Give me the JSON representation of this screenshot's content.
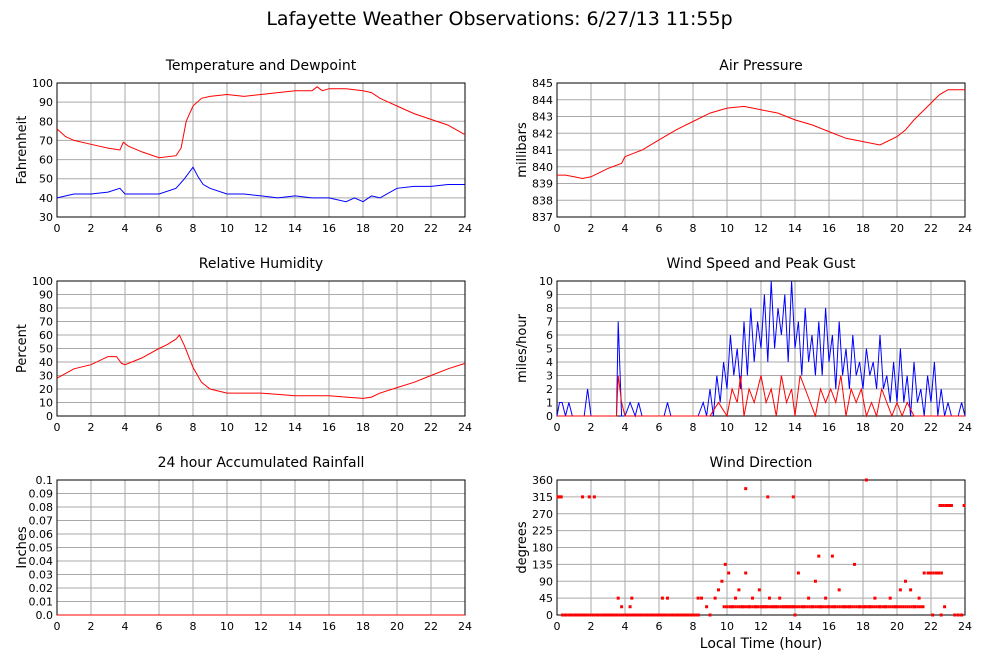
{
  "title": "Lafayette Weather Observations: 6/27/13 11:55p",
  "xlabel": "Local Time (hour)",
  "colors": {
    "red": "#ff0000",
    "blue": "#0000ff",
    "grid": "#aaaaaa"
  },
  "chart_data": [
    {
      "id": "temp",
      "type": "line",
      "title": "Temperature and Dewpoint",
      "ylabel": "Fahrenheit",
      "xlim": [
        0,
        24
      ],
      "ylim": [
        30,
        100
      ],
      "xticks": [
        "0",
        "2",
        "4",
        "6",
        "8",
        "10",
        "12",
        "14",
        "16",
        "18",
        "20",
        "22",
        "24"
      ],
      "yticks": [
        "30",
        "40",
        "50",
        "60",
        "70",
        "80",
        "90",
        "100"
      ],
      "series": [
        {
          "color": "#ff0000",
          "x": [
            0,
            0.5,
            1,
            2,
            3,
            3.7,
            3.9,
            4.2,
            5,
            6,
            7,
            7.3,
            7.6,
            8,
            8.5,
            9,
            10,
            11,
            12,
            13,
            14,
            15,
            15.3,
            15.6,
            16,
            17,
            18,
            18.5,
            19,
            20,
            21,
            22,
            23,
            24
          ],
          "y": [
            76,
            72,
            70,
            68,
            66,
            65,
            69,
            67,
            64,
            61,
            62,
            66,
            80,
            88,
            92,
            93,
            94,
            93,
            94,
            95,
            96,
            96,
            98,
            96,
            97,
            97,
            96,
            95,
            92,
            88,
            84,
            81,
            78,
            73
          ]
        },
        {
          "color": "#0000ff",
          "x": [
            0,
            1,
            2,
            3,
            3.7,
            4,
            5,
            6,
            7,
            7.5,
            8,
            8.3,
            8.6,
            9,
            10,
            11,
            12,
            13,
            14,
            15,
            16,
            17,
            17.5,
            18,
            18.5,
            19,
            20,
            21,
            22,
            23,
            24
          ],
          "y": [
            40,
            42,
            42,
            43,
            45,
            42,
            42,
            42,
            45,
            50,
            56,
            51,
            47,
            45,
            42,
            42,
            41,
            40,
            41,
            40,
            40,
            38,
            40,
            38,
            41,
            40,
            45,
            46,
            46,
            47,
            47
          ]
        }
      ]
    },
    {
      "id": "pressure",
      "type": "line",
      "title": "Air Pressure",
      "ylabel": "millibars",
      "xlim": [
        0,
        24
      ],
      "ylim": [
        837,
        845
      ],
      "xticks": [
        "0",
        "2",
        "4",
        "6",
        "8",
        "10",
        "12",
        "14",
        "16",
        "18",
        "20",
        "22",
        "24"
      ],
      "yticks": [
        "837",
        "838",
        "839",
        "840",
        "841",
        "842",
        "843",
        "844",
        "845"
      ],
      "series": [
        {
          "color": "#ff0000",
          "x": [
            0,
            0.5,
            1,
            1.5,
            2,
            3,
            3.8,
            4,
            5,
            6,
            7,
            8,
            9,
            10,
            11,
            12,
            13,
            14,
            15,
            16,
            17,
            18,
            19,
            20,
            20.5,
            21,
            22,
            22.5,
            23,
            24
          ],
          "y": [
            839.5,
            839.5,
            839.4,
            839.3,
            839.4,
            839.9,
            840.2,
            840.6,
            841.0,
            841.6,
            842.2,
            842.7,
            843.2,
            843.5,
            843.6,
            843.4,
            843.2,
            842.8,
            842.5,
            842.1,
            841.7,
            841.5,
            841.3,
            841.8,
            842.2,
            842.8,
            843.8,
            844.3,
            844.6,
            844.6
          ]
        }
      ]
    },
    {
      "id": "humidity",
      "type": "line",
      "title": "Relative Humidity",
      "ylabel": "Percent",
      "xlim": [
        0,
        24
      ],
      "ylim": [
        0,
        100
      ],
      "xticks": [
        "0",
        "2",
        "4",
        "6",
        "8",
        "10",
        "12",
        "14",
        "16",
        "18",
        "20",
        "22",
        "24"
      ],
      "yticks": [
        "0",
        "10",
        "20",
        "30",
        "40",
        "50",
        "60",
        "70",
        "80",
        "90",
        "100"
      ],
      "series": [
        {
          "color": "#ff0000",
          "x": [
            0,
            1,
            2,
            3,
            3.5,
            3.8,
            4,
            5,
            6,
            6.5,
            7,
            7.2,
            7.5,
            8,
            8.5,
            9,
            10,
            11,
            12,
            13,
            14,
            15,
            16,
            17,
            18,
            18.5,
            19,
            20,
            21,
            22,
            23,
            24
          ],
          "y": [
            28,
            35,
            38,
            44,
            44,
            39,
            38,
            43,
            50,
            53,
            57,
            60,
            52,
            36,
            25,
            20,
            17,
            17,
            17,
            16,
            15,
            15,
            15,
            14,
            13,
            14,
            17,
            21,
            25,
            30,
            35,
            39
          ]
        }
      ]
    },
    {
      "id": "wind",
      "type": "line",
      "title": "Wind Speed and Peak Gust",
      "ylabel": "miles/hour",
      "xlim": [
        0,
        24
      ],
      "ylim": [
        0,
        10
      ],
      "xticks": [
        "0",
        "2",
        "4",
        "6",
        "8",
        "10",
        "12",
        "14",
        "16",
        "18",
        "20",
        "22",
        "24"
      ],
      "yticks": [
        "0",
        "1",
        "2",
        "3",
        "4",
        "5",
        "6",
        "7",
        "8",
        "9",
        "10"
      ],
      "series": [
        {
          "color": "#0000ff",
          "x": [
            0,
            0.15,
            0.3,
            0.5,
            0.7,
            0.9,
            1.6,
            1.8,
            2.0,
            3.5,
            3.6,
            3.8,
            4.0,
            4.3,
            4.6,
            4.8,
            5.0,
            6.3,
            6.5,
            6.7,
            7.5,
            8.0,
            8.3,
            8.6,
            8.8,
            9.0,
            9.2,
            9.4,
            9.6,
            9.8,
            10.0,
            10.2,
            10.4,
            10.6,
            10.8,
            11.0,
            11.2,
            11.4,
            11.6,
            11.8,
            12.0,
            12.2,
            12.4,
            12.6,
            12.8,
            13.0,
            13.2,
            13.4,
            13.6,
            13.8,
            14.0,
            14.2,
            14.4,
            14.6,
            14.8,
            15.0,
            15.2,
            15.4,
            15.6,
            15.8,
            16.0,
            16.2,
            16.4,
            16.6,
            16.8,
            17.0,
            17.2,
            17.4,
            17.6,
            17.8,
            18.0,
            18.2,
            18.4,
            18.6,
            18.8,
            19.0,
            19.2,
            19.4,
            19.6,
            19.8,
            20.0,
            20.2,
            20.4,
            20.6,
            20.8,
            21.0,
            21.2,
            21.4,
            21.6,
            21.8,
            22.0,
            22.2,
            22.4,
            22.6,
            22.8,
            23.0,
            23.2,
            23.6,
            23.8,
            24.0
          ],
          "y": [
            0,
            1,
            1,
            0,
            1,
            0,
            0,
            2,
            0,
            0,
            7,
            0,
            0,
            1,
            0,
            1,
            0,
            0,
            1,
            0,
            0,
            0,
            0,
            1,
            0,
            2,
            0,
            3,
            1,
            4,
            2,
            6,
            3,
            5,
            2,
            7,
            3,
            8,
            4,
            7,
            5,
            9,
            4,
            10,
            5,
            8,
            6,
            9,
            4,
            10,
            5,
            7,
            3,
            8,
            4,
            6,
            3,
            7,
            3,
            8,
            4,
            6,
            2,
            7,
            3,
            5,
            2,
            6,
            3,
            4,
            2,
            5,
            3,
            4,
            2,
            6,
            2,
            3,
            1,
            4,
            1,
            5,
            1,
            3,
            0,
            4,
            1,
            2,
            0,
            3,
            1,
            4,
            0,
            2,
            0,
            1,
            0,
            0,
            1,
            0
          ]
        },
        {
          "color": "#ff0000",
          "x": [
            0,
            3.5,
            3.6,
            3.8,
            4.0,
            8.0,
            9.0,
            9.5,
            10.0,
            10.3,
            10.6,
            10.8,
            11.0,
            11.3,
            11.6,
            12.0,
            12.3,
            12.6,
            12.9,
            13.2,
            13.5,
            13.8,
            14.0,
            14.3,
            14.6,
            14.9,
            15.2,
            15.5,
            15.8,
            16.1,
            16.4,
            16.7,
            17.0,
            17.3,
            17.6,
            17.9,
            18.2,
            18.5,
            18.8,
            19.1,
            19.4,
            19.7,
            20.0,
            20.3,
            20.6,
            21.0,
            24.0
          ],
          "y": [
            0,
            0,
            3,
            1,
            0,
            0,
            0,
            1,
            0,
            2,
            1,
            3,
            0,
            2,
            1,
            3,
            1,
            2,
            0,
            3,
            1,
            2,
            0,
            3,
            2,
            1,
            0,
            2,
            1,
            2,
            1,
            3,
            0,
            2,
            1,
            2,
            0,
            1,
            0,
            2,
            1,
            0,
            1,
            0,
            1,
            0,
            0
          ]
        }
      ]
    },
    {
      "id": "rain",
      "type": "line",
      "title": "24 hour Accumulated Rainfall",
      "ylabel": "Inches",
      "xlim": [
        0,
        24
      ],
      "ylim": [
        0,
        0.1
      ],
      "xticks": [
        "0",
        "2",
        "4",
        "6",
        "8",
        "10",
        "12",
        "14",
        "16",
        "18",
        "20",
        "22",
        "24"
      ],
      "yticks": [
        "0.0",
        "0.01",
        "0.02",
        "0.03",
        "0.04",
        "0.05",
        "0.06",
        "0.07",
        "0.08",
        "0.09",
        "0.1"
      ],
      "series": [
        {
          "color": "#ff0000",
          "x": [
            0,
            24
          ],
          "y": [
            0,
            0
          ]
        }
      ]
    },
    {
      "id": "direction",
      "type": "scatter",
      "title": "Wind Direction",
      "ylabel": "degrees",
      "xlim": [
        0,
        24
      ],
      "ylim": [
        0,
        360
      ],
      "xticks": [
        "0",
        "2",
        "4",
        "6",
        "8",
        "10",
        "12",
        "14",
        "16",
        "18",
        "20",
        "22",
        "24"
      ],
      "yticks": [
        "0",
        "45",
        "90",
        "135",
        "180",
        "225",
        "270",
        "315",
        "360"
      ],
      "series": [
        {
          "color": "#ff0000",
          "x": [
            0.05,
            0.15,
            0.25,
            1.5,
            1.9,
            2.2,
            0.5,
            0.8,
            1.1,
            1.4,
            2.4,
            2.8,
            3.2,
            3.5,
            3.6,
            3.8,
            4.1,
            4.4,
            4.7,
            5.0,
            5.3,
            5.6,
            5.9,
            6.2,
            6.5,
            6.8,
            7.1,
            7.4,
            7.7,
            8.0,
            8.3,
            8.5,
            8.8,
            9.0,
            9.3,
            9.5,
            9.7,
            9.9,
            10.1,
            10.3,
            10.5,
            10.7,
            10.9,
            11.1,
            11.3,
            11.5,
            11.7,
            11.9,
            12.1,
            12.3,
            12.5,
            12.7,
            12.9,
            13.1,
            13.3,
            13.5,
            13.7,
            13.9,
            14.0,
            14.2,
            14.5,
            14.8,
            15.0,
            15.2,
            15.5,
            15.8,
            16.0,
            16.3,
            16.6,
            16.9,
            17.2,
            17.5,
            17.8,
            18.1,
            18.2,
            18.4,
            18.7,
            19.0,
            19.3,
            19.6,
            19.9,
            20.2,
            20.5,
            20.8,
            21.0,
            21.3,
            21.6,
            21.9,
            22.1,
            22.4,
            22.6,
            22.8,
            23.0,
            23.2,
            23.4,
            23.6,
            23.8,
            23.95,
            6.2,
            4.3,
            11.1,
            12.4,
            13.9,
            15.4,
            16.2
          ],
          "y": [
            315,
            315,
            315,
            315,
            315,
            315,
            0,
            0,
            0,
            0,
            0,
            0,
            0,
            0,
            45,
            22,
            0,
            45,
            0,
            0,
            0,
            0,
            0,
            0,
            45,
            0,
            0,
            0,
            0,
            0,
            45,
            45,
            22,
            0,
            45,
            67,
            90,
            135,
            112,
            22,
            45,
            67,
            22,
            112,
            22,
            45,
            22,
            67,
            22,
            22,
            45,
            22,
            22,
            45,
            22,
            22,
            22,
            22,
            0,
            112,
            22,
            45,
            22,
            90,
            22,
            45,
            22,
            22,
            67,
            22,
            22,
            135,
            22,
            22,
            360,
            22,
            45,
            22,
            22,
            45,
            22,
            67,
            90,
            67,
            22,
            45,
            112,
            112,
            0,
            112,
            0,
            22,
            292,
            292,
            0,
            0,
            0,
            292,
            45,
            22,
            337,
            315,
            315,
            157,
            157
          ]
        }
      ]
    }
  ]
}
